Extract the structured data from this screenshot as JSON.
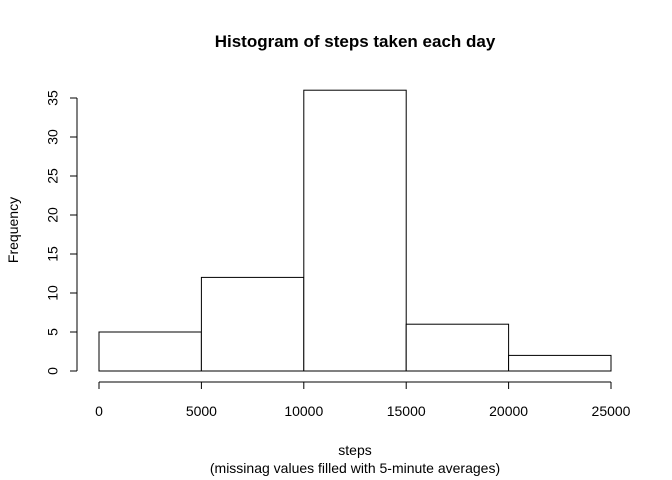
{
  "chart_data": {
    "type": "bar",
    "title": "Histogram of steps taken each day",
    "xlabel": "steps",
    "xlabel_sub": "(missinag values filled with 5-minute averages)",
    "ylabel": "Frequency",
    "bins": [
      {
        "from": 0,
        "to": 5000,
        "value": 5
      },
      {
        "from": 5000,
        "to": 10000,
        "value": 12
      },
      {
        "from": 10000,
        "to": 15000,
        "value": 36
      },
      {
        "from": 15000,
        "to": 20000,
        "value": 6
      },
      {
        "from": 20000,
        "to": 25000,
        "value": 2
      }
    ],
    "xlim": [
      0,
      25000
    ],
    "ylim": [
      0,
      35
    ],
    "xticks": [
      "0",
      "5000",
      "10000",
      "15000",
      "20000",
      "25000"
    ],
    "yticks": [
      "0",
      "5",
      "10",
      "15",
      "20",
      "25",
      "30",
      "35"
    ],
    "grid": false,
    "bar_fill": "#ffffff",
    "bar_stroke": "#000000"
  }
}
